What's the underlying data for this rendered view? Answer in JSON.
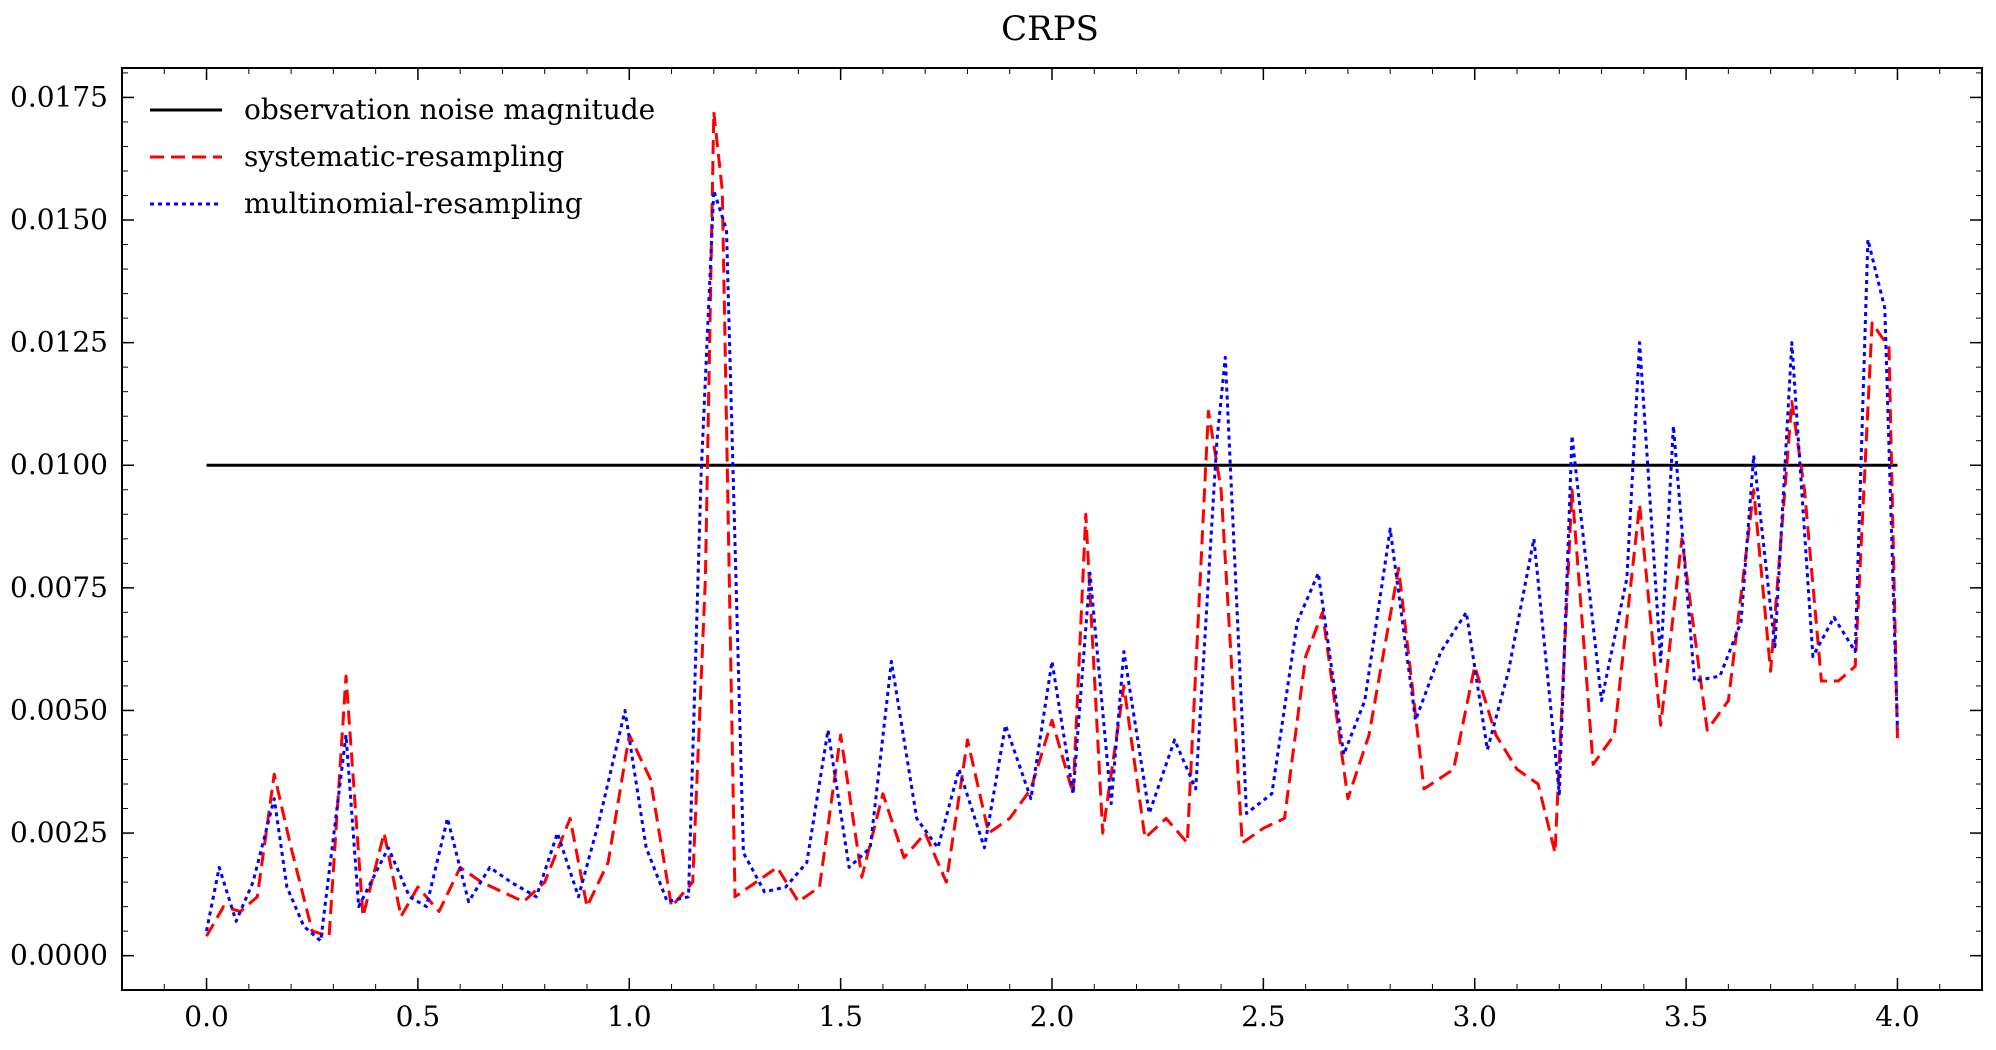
{
  "chart_data": {
    "type": "line",
    "title": "CRPS",
    "xlabel": "",
    "ylabel": "",
    "xlim": [
      -0.2,
      4.2
    ],
    "ylim": [
      -0.0007,
      0.0181
    ],
    "x_ticks": [
      0.0,
      0.5,
      1.0,
      1.5,
      2.0,
      2.5,
      3.0,
      3.5,
      4.0
    ],
    "x_tick_labels": [
      "0.0",
      "0.5",
      "1.0",
      "1.5",
      "2.0",
      "2.5",
      "3.0",
      "3.5",
      "4.0"
    ],
    "y_ticks": [
      0.0,
      0.0025,
      0.005,
      0.0075,
      0.01,
      0.0125,
      0.015,
      0.0175
    ],
    "y_tick_labels": [
      "0.0000",
      "0.0025",
      "0.0050",
      "0.0075",
      "0.0100",
      "0.0125",
      "0.0150",
      "0.0175"
    ],
    "grid": false,
    "legend_position": "top-left",
    "series": [
      {
        "name": "observation noise magnitude",
        "color": "#000000",
        "style": "solid",
        "x": [
          0.0,
          4.0
        ],
        "values": [
          0.01,
          0.01
        ]
      },
      {
        "name": "systematic-resampling",
        "color": "#ff0000",
        "style": "dashed",
        "x": [
          0.0,
          0.04,
          0.08,
          0.12,
          0.16,
          0.2,
          0.25,
          0.29,
          0.33,
          0.37,
          0.42,
          0.46,
          0.5,
          0.55,
          0.6,
          0.65,
          0.7,
          0.75,
          0.8,
          0.86,
          0.9,
          0.95,
          1.0,
          1.05,
          1.1,
          1.15,
          1.18,
          1.2,
          1.22,
          1.25,
          1.3,
          1.35,
          1.4,
          1.45,
          1.5,
          1.55,
          1.6,
          1.65,
          1.7,
          1.75,
          1.8,
          1.85,
          1.9,
          1.95,
          2.0,
          2.05,
          2.08,
          2.12,
          2.17,
          2.22,
          2.27,
          2.32,
          2.37,
          2.4,
          2.45,
          2.5,
          2.55,
          2.6,
          2.64,
          2.7,
          2.75,
          2.82,
          2.88,
          2.95,
          3.0,
          3.05,
          3.1,
          3.15,
          3.19,
          3.23,
          3.28,
          3.33,
          3.39,
          3.44,
          3.49,
          3.55,
          3.6,
          3.66,
          3.7,
          3.75,
          3.78,
          3.82,
          3.86,
          3.9,
          3.94,
          3.98,
          4.0
        ],
        "values": [
          0.0004,
          0.001,
          0.0009,
          0.0012,
          0.0037,
          0.0022,
          0.0005,
          0.0004,
          0.0057,
          0.0008,
          0.0025,
          0.0008,
          0.0014,
          0.0009,
          0.0018,
          0.0015,
          0.0013,
          0.0011,
          0.0015,
          0.0028,
          0.001,
          0.0019,
          0.0045,
          0.0036,
          0.001,
          0.0015,
          0.0077,
          0.0172,
          0.0156,
          0.0012,
          0.0015,
          0.0018,
          0.0011,
          0.0014,
          0.0045,
          0.0016,
          0.0033,
          0.002,
          0.0025,
          0.0015,
          0.0044,
          0.0025,
          0.0028,
          0.0034,
          0.0048,
          0.0033,
          0.009,
          0.0025,
          0.0055,
          0.0024,
          0.0028,
          0.0023,
          0.0111,
          0.0095,
          0.0023,
          0.0026,
          0.0028,
          0.0061,
          0.007,
          0.0032,
          0.0045,
          0.0079,
          0.0034,
          0.0038,
          0.0059,
          0.0045,
          0.0038,
          0.0035,
          0.0021,
          0.0095,
          0.0039,
          0.0045,
          0.0092,
          0.0047,
          0.0085,
          0.0046,
          0.0052,
          0.0095,
          0.0058,
          0.0113,
          0.0095,
          0.0056,
          0.0056,
          0.0059,
          0.0129,
          0.0124,
          0.0044
        ]
      },
      {
        "name": "multinomial-resampling",
        "color": "#0000ff",
        "style": "dotted",
        "x": [
          0.0,
          0.03,
          0.07,
          0.11,
          0.16,
          0.19,
          0.23,
          0.27,
          0.33,
          0.36,
          0.43,
          0.48,
          0.52,
          0.57,
          0.62,
          0.67,
          0.72,
          0.78,
          0.83,
          0.88,
          0.93,
          0.99,
          1.04,
          1.09,
          1.14,
          1.17,
          1.2,
          1.23,
          1.27,
          1.32,
          1.37,
          1.42,
          1.47,
          1.52,
          1.57,
          1.62,
          1.68,
          1.73,
          1.78,
          1.84,
          1.89,
          1.95,
          2.0,
          2.05,
          2.09,
          2.14,
          2.17,
          2.23,
          2.29,
          2.34,
          2.39,
          2.41,
          2.46,
          2.52,
          2.58,
          2.63,
          2.69,
          2.74,
          2.8,
          2.86,
          2.92,
          2.98,
          3.03,
          3.08,
          3.14,
          3.2,
          3.23,
          3.3,
          3.36,
          3.39,
          3.44,
          3.47,
          3.52,
          3.58,
          3.63,
          3.66,
          3.71,
          3.75,
          3.8,
          3.85,
          3.9,
          3.93,
          3.97,
          4.0
        ],
        "values": [
          0.0005,
          0.0018,
          0.0007,
          0.0015,
          0.0032,
          0.0014,
          0.0006,
          0.0003,
          0.0045,
          0.001,
          0.0022,
          0.0012,
          0.001,
          0.0028,
          0.0011,
          0.0018,
          0.0015,
          0.0012,
          0.0025,
          0.0012,
          0.0028,
          0.005,
          0.0022,
          0.0011,
          0.0012,
          0.0098,
          0.0156,
          0.0148,
          0.0021,
          0.0013,
          0.0014,
          0.0019,
          0.0046,
          0.0018,
          0.0022,
          0.006,
          0.0028,
          0.0022,
          0.0038,
          0.0022,
          0.0047,
          0.0032,
          0.006,
          0.0033,
          0.0078,
          0.0031,
          0.0062,
          0.0029,
          0.0044,
          0.0034,
          0.0105,
          0.0122,
          0.0029,
          0.0033,
          0.0068,
          0.0078,
          0.0041,
          0.0052,
          0.0087,
          0.0048,
          0.0062,
          0.007,
          0.0042,
          0.0058,
          0.0085,
          0.0033,
          0.0106,
          0.0052,
          0.0077,
          0.0125,
          0.006,
          0.0108,
          0.0056,
          0.0057,
          0.0068,
          0.0102,
          0.0063,
          0.0125,
          0.0061,
          0.0069,
          0.0062,
          0.0146,
          0.0132,
          0.0046
        ]
      }
    ]
  }
}
